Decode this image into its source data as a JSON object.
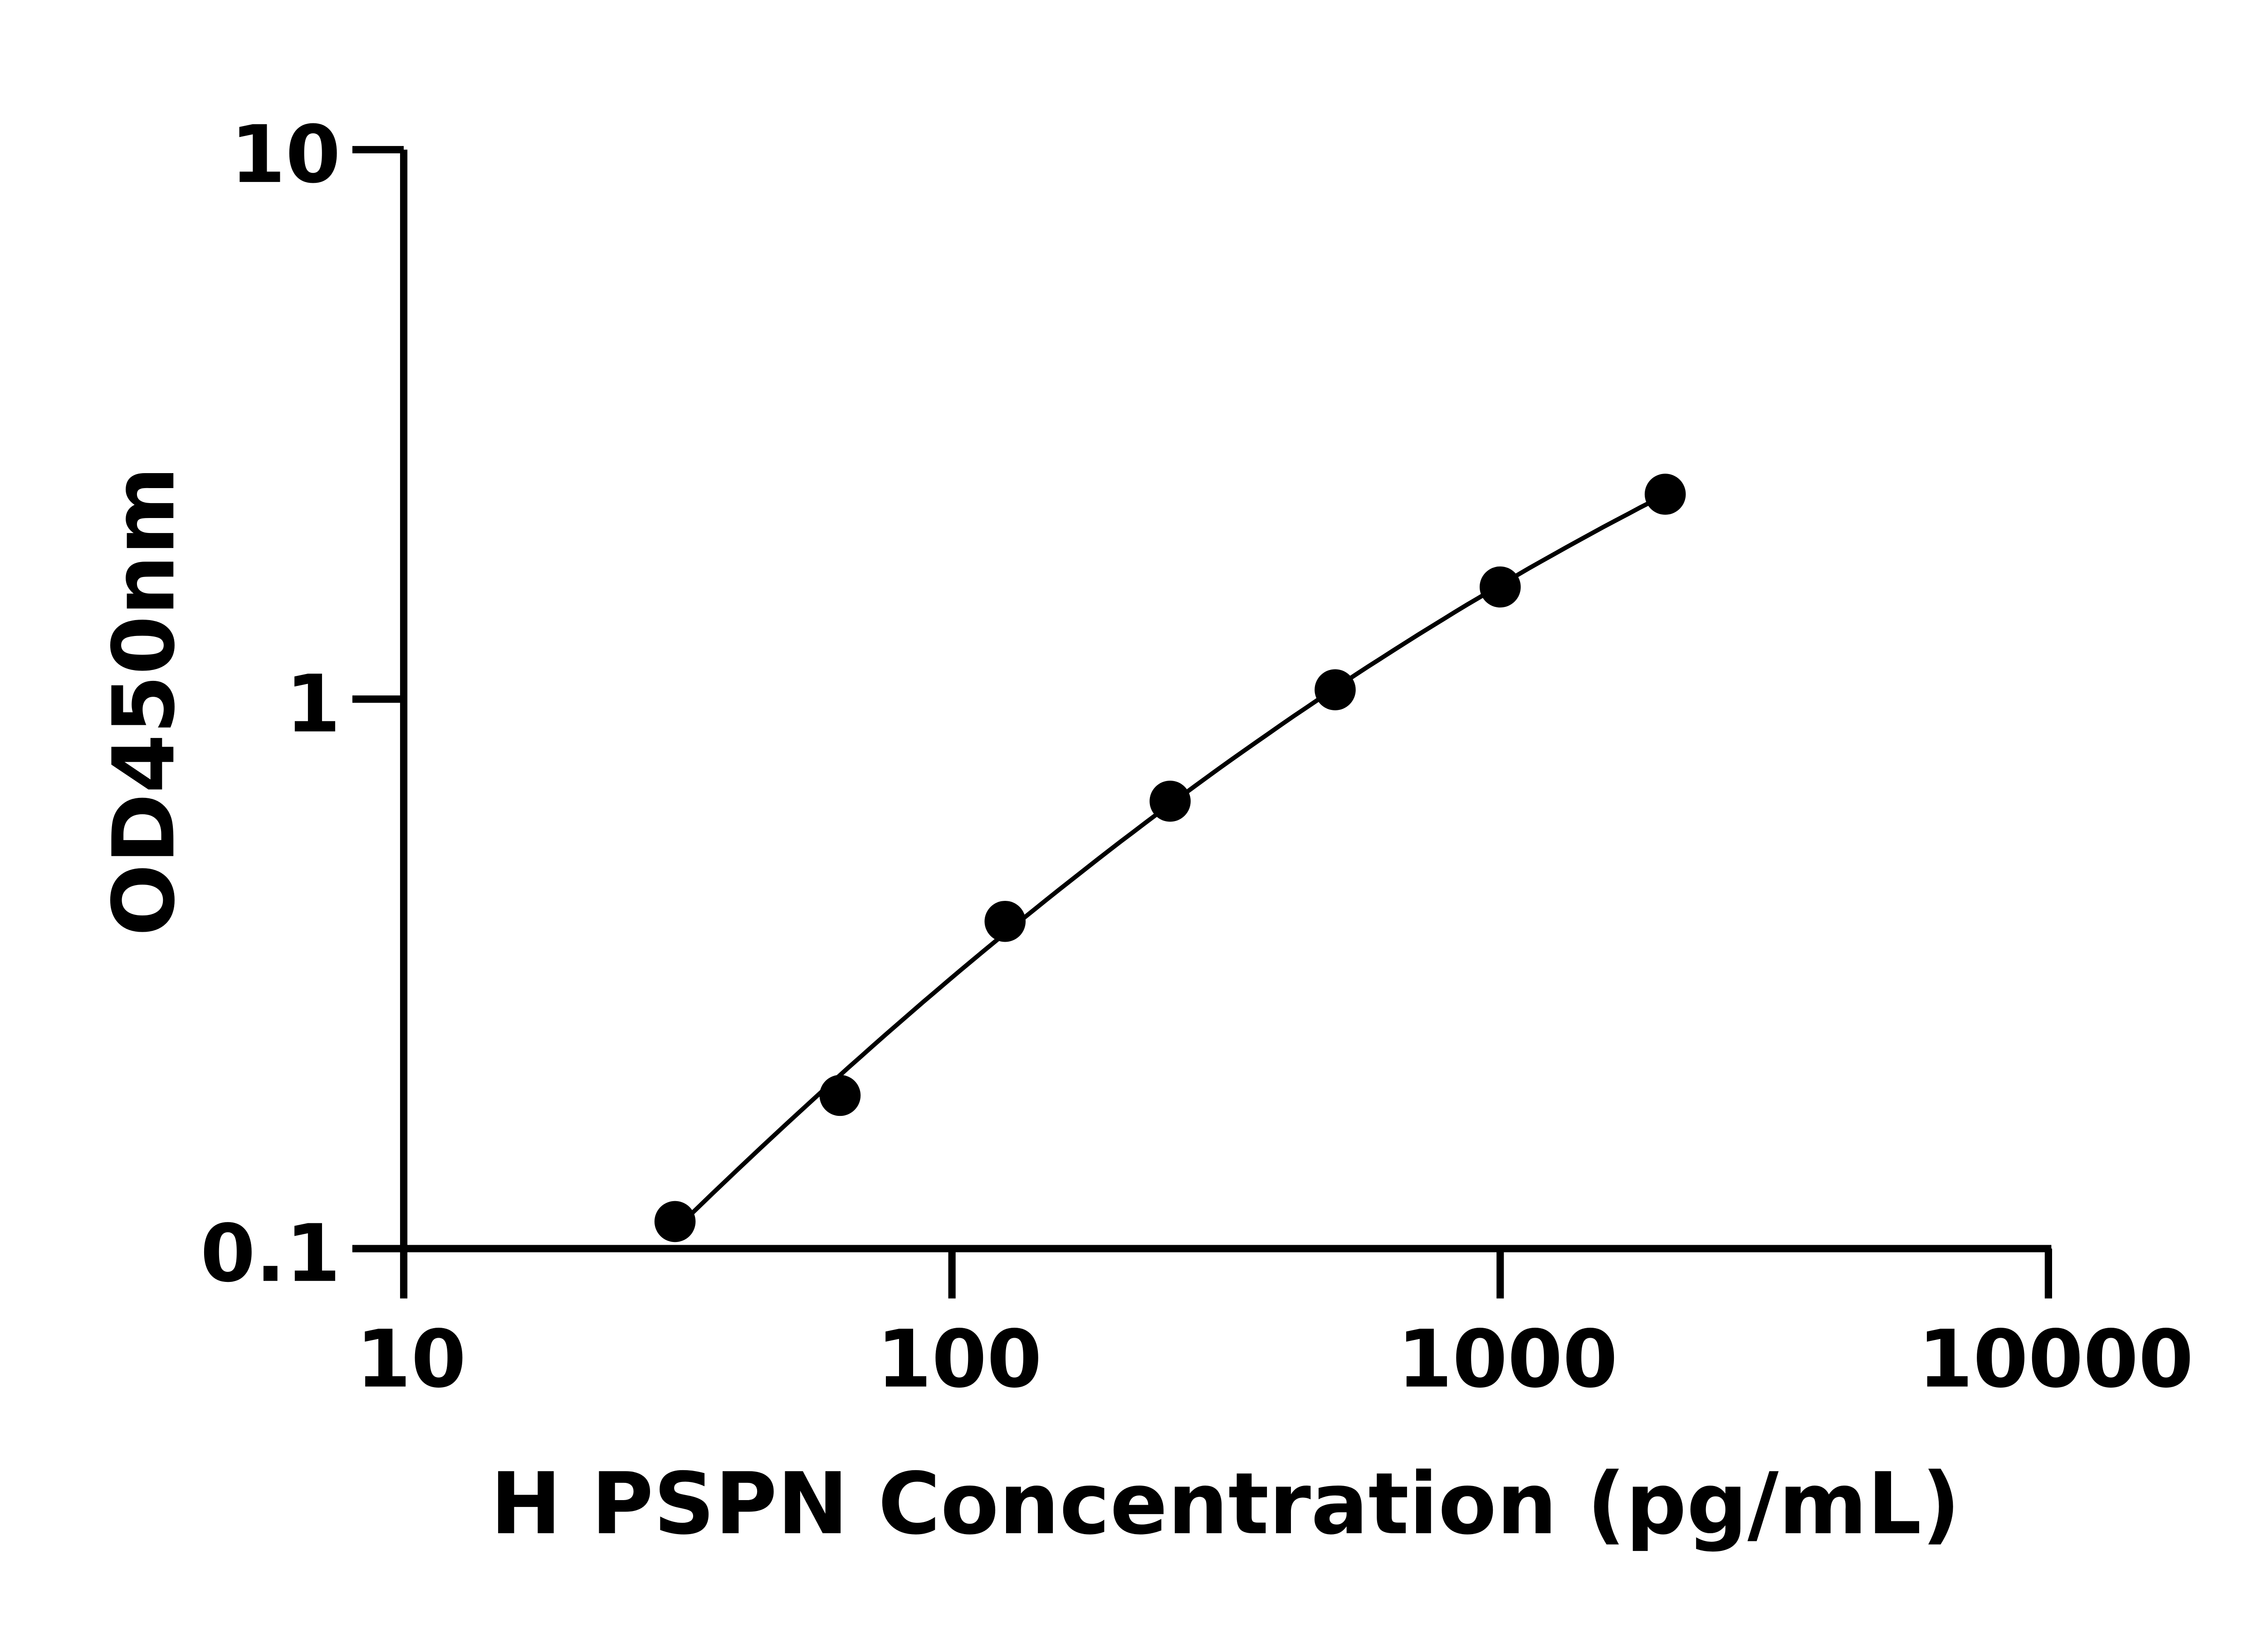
{
  "chart_data": {
    "type": "scatter",
    "title": "",
    "xlabel": "H PSPN Concentration (pg/mL)",
    "ylabel": "OD450nm",
    "x_scale": "log",
    "y_scale": "log",
    "xlim": [
      10,
      10000
    ],
    "ylim": [
      0.1,
      10
    ],
    "x_ticks": [
      10,
      100,
      1000,
      10000
    ],
    "x_tick_labels": [
      "10",
      "100",
      "1000",
      "10000"
    ],
    "y_ticks": [
      0.1,
      1,
      10
    ],
    "y_tick_labels": [
      "0.1",
      "1",
      "10"
    ],
    "grid": false,
    "legend": "none",
    "fit_curve": true,
    "marker_color": "#000000",
    "series": [
      {
        "x": [
          31.25,
          62.5,
          125,
          250,
          500,
          1000,
          2000
        ],
        "y": [
          0.112,
          0.19,
          0.394,
          0.652,
          1.04,
          1.6,
          2.36
        ]
      }
    ]
  }
}
